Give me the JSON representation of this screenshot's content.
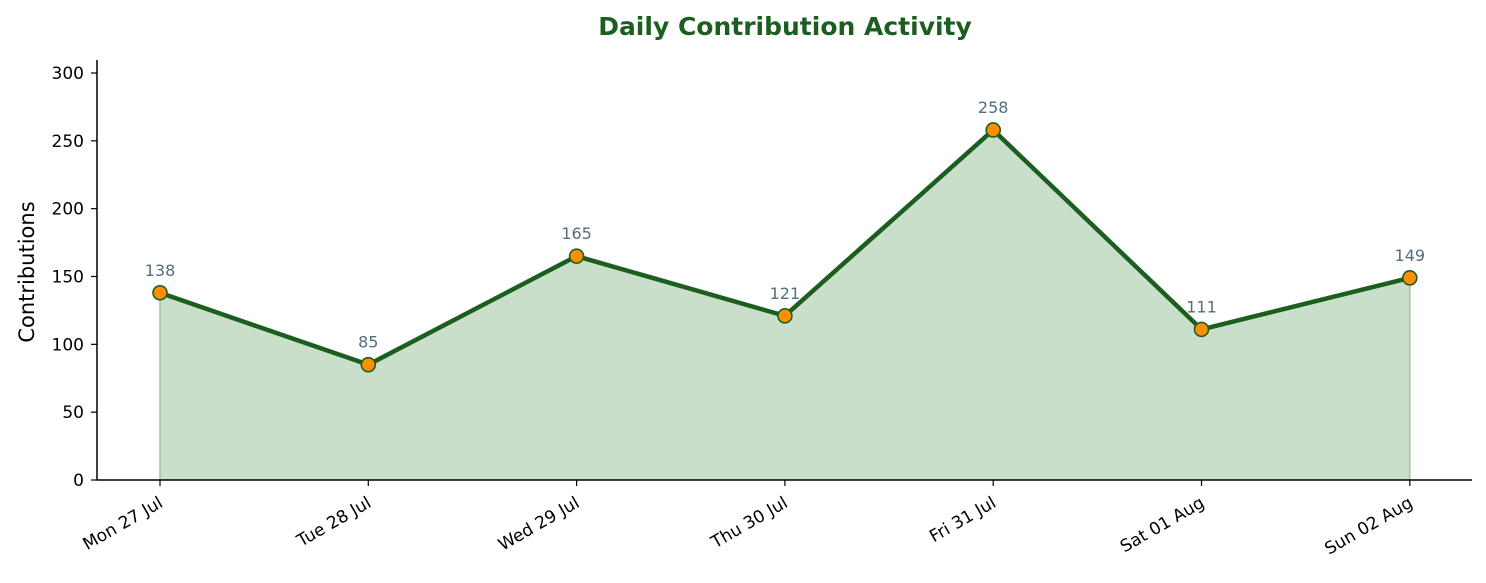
{
  "chart_data": {
    "type": "area",
    "title": "Daily Contribution Activity",
    "xlabel": "",
    "ylabel": "Contributions",
    "categories": [
      "Mon 27 Jul",
      "Tue 28 Jul",
      "Wed 29 Jul",
      "Thu 30 Jul",
      "Fri 31 Jul",
      "Sat 01 Aug",
      "Sun 02 Aug"
    ],
    "values": [
      138,
      85,
      165,
      121,
      258,
      111,
      149
    ],
    "ylim": [
      0,
      310
    ],
    "yticks": [
      0,
      50,
      100,
      150,
      200,
      250,
      300
    ],
    "grid": false,
    "legend": "none",
    "colors": {
      "title": "#1b5e20",
      "line": "#1b5e20",
      "fill": "#cadfca",
      "fill_edge": "#9ec79e",
      "marker_fill": "#ff8f00",
      "marker_edge": "#1b5e20",
      "data_label": "#546e7a",
      "axis": "#000000"
    }
  }
}
